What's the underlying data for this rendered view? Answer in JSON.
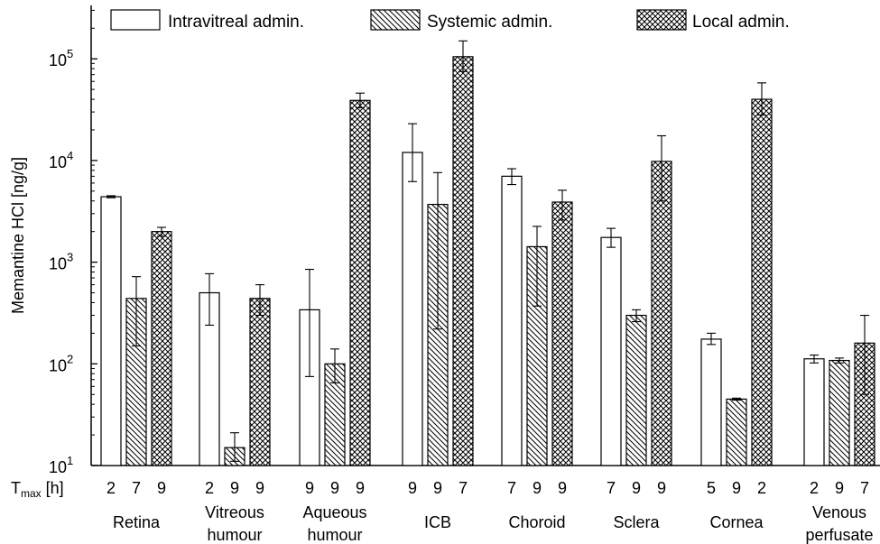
{
  "chart_data": {
    "type": "bar",
    "ylabel": "Memantine HCl [ng/g]",
    "yscale": "log",
    "ylim": [
      10,
      300000
    ],
    "y_ticks": [
      {
        "base": "10",
        "exp": "1"
      },
      {
        "base": "10",
        "exp": "2"
      },
      {
        "base": "10",
        "exp": "3"
      },
      {
        "base": "10",
        "exp": "4"
      },
      {
        "base": "10",
        "exp": "5"
      }
    ],
    "tmax_label": {
      "main": "T",
      "sub": "max",
      "unit": " [h]"
    },
    "legend_position": "top",
    "categories": [
      {
        "lines": [
          "Retina"
        ]
      },
      {
        "lines": [
          "Vitreous",
          "humour"
        ]
      },
      {
        "lines": [
          "Aqueous",
          "humour"
        ]
      },
      {
        "lines": [
          "ICB"
        ]
      },
      {
        "lines": [
          "Choroid"
        ]
      },
      {
        "lines": [
          "Sclera"
        ]
      },
      {
        "lines": [
          "Cornea"
        ]
      },
      {
        "lines": [
          "Venous",
          "perfusate"
        ]
      }
    ],
    "series": [
      {
        "name": "Intravitreal admin.",
        "pattern": "open",
        "values": [
          4400,
          500,
          340,
          12000,
          7000,
          1750,
          175,
          112
        ],
        "err_low": [
          4300,
          240,
          75,
          6200,
          5800,
          1400,
          155,
          102
        ],
        "err_high": [
          4500,
          770,
          850,
          23000,
          8300,
          2150,
          200,
          122
        ],
        "tmax": [
          "2",
          "2",
          "9",
          "9",
          "7",
          "7",
          "5",
          "2"
        ]
      },
      {
        "name": "Systemic admin.",
        "pattern": "hatched",
        "values": [
          440,
          15,
          100,
          3700,
          1420,
          300,
          45,
          108
        ],
        "err_low": [
          150,
          11,
          65,
          220,
          370,
          260,
          44,
          102
        ],
        "err_high": [
          720,
          21,
          140,
          7600,
          2250,
          340,
          46,
          114
        ],
        "tmax": [
          "7",
          "9",
          "9",
          "9",
          "9",
          "9",
          "9",
          "9"
        ]
      },
      {
        "name": "Local admin.",
        "pattern": "crosshatched",
        "values": [
          2000,
          440,
          39000,
          105000,
          3900,
          9800,
          40000,
          160
        ],
        "err_low": [
          1800,
          300,
          33000,
          75000,
          2600,
          4000,
          28000,
          50
        ],
        "err_high": [
          2200,
          600,
          46000,
          150000,
          5100,
          17500,
          58000,
          300
        ],
        "tmax": [
          "9",
          "9",
          "9",
          "7",
          "9",
          "9",
          "2",
          "7"
        ]
      }
    ]
  }
}
